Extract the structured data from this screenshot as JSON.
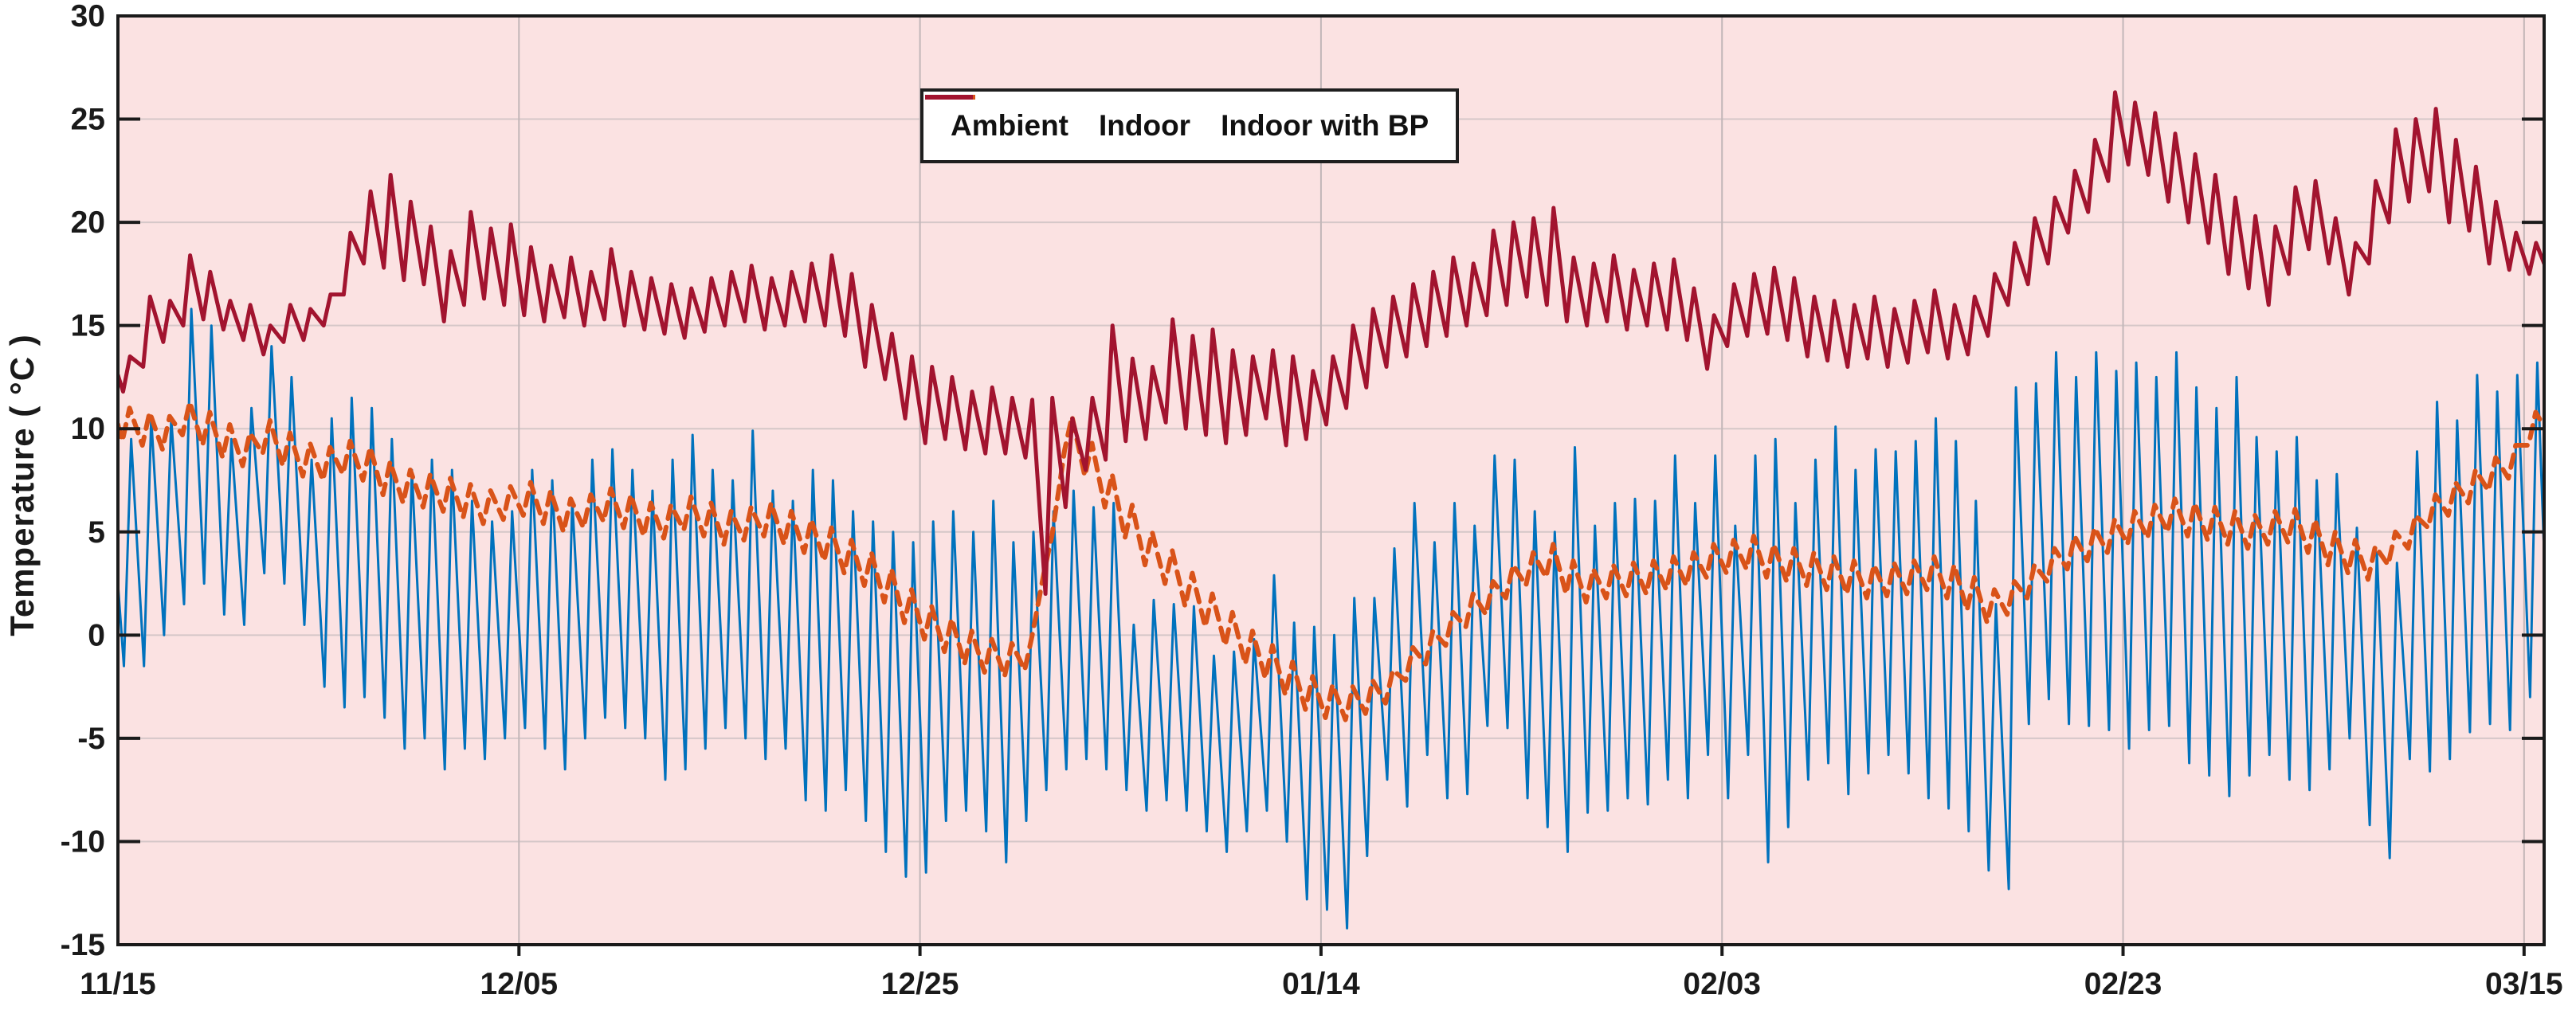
{
  "chart_data": {
    "type": "line",
    "title": "",
    "xlabel": "",
    "ylabel": "Temperature ( °C )",
    "ylim": [
      -15,
      30
    ],
    "yticks": [
      -15,
      -10,
      -5,
      0,
      5,
      10,
      15,
      20,
      25,
      30
    ],
    "xlim_days": [
      0,
      121
    ],
    "x_unit": "days since 11/15, 1 sample = 1 day (daily min / daily max of each curve)",
    "xticks_days": [
      0,
      20,
      40,
      60,
      80,
      100,
      120
    ],
    "xtick_labels": [
      "11/15",
      "12/05",
      "12/25",
      "01/14",
      "02/03",
      "02/23",
      "03/15"
    ],
    "grid": true,
    "legend_position": "top-center-inside",
    "plot_bg_color": "#fbe2e2",
    "h_grid_color": "#d5c7c8",
    "v_grid_color": "#c2b6b8",
    "axis_color": "#1a1a1a",
    "series": [
      {
        "name": "Ambient",
        "color": "#0072BD",
        "line_style": "solid",
        "line_width": 3,
        "start_value": 2.5,
        "end_value": 4.0,
        "daily_max": [
          9.5,
          10.5,
          10.5,
          15.8,
          15.0,
          9.5,
          11.0,
          14.0,
          12.5,
          8.5,
          10.5,
          11.5,
          11.0,
          9.5,
          8.0,
          8.5,
          8.0,
          6.5,
          5.5,
          6.0,
          8.0,
          7.5,
          6.5,
          8.5,
          9.0,
          8.0,
          7.0,
          8.5,
          9.7,
          8.0,
          7.5,
          9.9,
          7.0,
          6.5,
          8.0,
          7.5,
          6.0,
          5.5,
          5.0,
          4.5,
          5.5,
          6.0,
          5.0,
          6.5,
          4.5,
          5.0,
          6.0,
          7.0,
          6.2,
          6.4,
          0.5,
          1.7,
          1.5,
          1.4,
          -1.0,
          -0.8,
          -0.2,
          2.9,
          0.6,
          0.4,
          0.0,
          1.8,
          1.8,
          4.2,
          6.4,
          4.5,
          6.4,
          5.3,
          8.7,
          8.5,
          6.0,
          5.0,
          9.1,
          5.3,
          6.4,
          6.6,
          6.5,
          8.7,
          6.4,
          8.7,
          5.3,
          8.7,
          9.5,
          6.4,
          8.5,
          10.1,
          8.0,
          9.0,
          8.9,
          9.4,
          10.5,
          9.4,
          6.5,
          1.5,
          12.0,
          12.2,
          13.7,
          12.5,
          13.7,
          12.8,
          13.2,
          12.5,
          13.7,
          12.0,
          11.0,
          12.5,
          9.6,
          8.9,
          9.6,
          7.5,
          7.8,
          5.2,
          4.0,
          3.5,
          8.9,
          11.3,
          10.4,
          12.6,
          11.8,
          12.6,
          13.2
        ],
        "daily_min": [
          -1.5,
          -1.5,
          0.0,
          1.5,
          2.5,
          1.0,
          0.5,
          3.0,
          2.5,
          0.5,
          -2.5,
          -3.5,
          -3.0,
          -4.0,
          -5.5,
          -5.0,
          -6.5,
          -5.5,
          -6.0,
          -5.0,
          -4.5,
          -5.5,
          -6.5,
          -5.0,
          -4.0,
          -4.5,
          -5.0,
          -7.0,
          -6.5,
          -5.5,
          -4.5,
          -5.0,
          -6.0,
          -5.5,
          -8.0,
          -8.5,
          -7.5,
          -9.0,
          -10.5,
          -11.7,
          -11.5,
          -9.0,
          -8.5,
          -9.5,
          -11.0,
          -9.0,
          -7.5,
          -6.5,
          -6.0,
          -6.5,
          -7.5,
          -8.5,
          -8.0,
          -8.5,
          -9.5,
          -10.5,
          -9.5,
          -8.5,
          -10.0,
          -12.8,
          -13.3,
          -14.2,
          -10.7,
          -7.0,
          -8.3,
          -5.8,
          -7.9,
          -7.7,
          -4.4,
          -4.5,
          -7.9,
          -9.3,
          -10.5,
          -8.6,
          -8.5,
          -7.9,
          -8.2,
          -7.0,
          -7.9,
          -5.8,
          -7.9,
          -5.8,
          -11.0,
          -9.3,
          -7.0,
          -6.2,
          -7.7,
          -6.7,
          -5.8,
          -6.7,
          -7.9,
          -8.4,
          -9.5,
          -11.4,
          -12.3,
          -4.3,
          -3.1,
          -4.3,
          -4.4,
          -4.6,
          -5.5,
          -4.6,
          -4.4,
          -6.2,
          -6.8,
          -7.8,
          -6.8,
          -5.8,
          -7.0,
          -7.5,
          -6.5,
          -5.0,
          -9.2,
          -10.8,
          -6.0,
          -6.6,
          -6.0,
          -4.7,
          -4.3,
          -4.6,
          -3.0
        ]
      },
      {
        "name": "Indoor",
        "color": "#D95319",
        "line_style": "dashed",
        "line_width": 6,
        "start_value": 10.2,
        "end_value": 10.1,
        "daily_amplitude": 0.8,
        "daily_values": [
          10.2,
          10.0,
          9.8,
          10.5,
          10.0,
          9.4,
          9.0,
          9.6,
          9.0,
          8.5,
          8.3,
          8.6,
          8.3,
          7.6,
          7.2,
          7.0,
          6.8,
          6.5,
          6.2,
          6.4,
          6.6,
          6.2,
          5.8,
          6.0,
          6.3,
          6.0,
          5.6,
          5.5,
          5.9,
          5.6,
          5.2,
          5.4,
          5.6,
          5.2,
          4.8,
          4.4,
          3.8,
          3.2,
          2.4,
          1.4,
          0.6,
          0.0,
          -0.6,
          -1.0,
          -1.2,
          -0.9,
          4.0,
          9.8,
          8.5,
          7.0,
          5.5,
          4.2,
          3.3,
          2.2,
          1.2,
          0.3,
          -0.6,
          -1.3,
          -2.1,
          -2.8,
          -3.2,
          -3.3,
          -3.0,
          -2.5,
          -1.4,
          -0.6,
          0.3,
          1.2,
          1.8,
          2.6,
          3.2,
          3.6,
          2.8,
          2.4,
          2.6,
          2.7,
          2.8,
          3.0,
          3.2,
          3.6,
          3.8,
          4.0,
          3.6,
          3.4,
          3.2,
          3.0,
          2.8,
          2.6,
          2.7,
          2.8,
          3.0,
          2.6,
          2.0,
          1.4,
          1.8,
          2.6,
          3.4,
          4.0,
          4.4,
          4.8,
          5.2,
          5.5,
          5.8,
          5.6,
          5.4,
          5.2,
          5.0,
          5.2,
          5.3,
          4.8,
          4.2,
          3.8,
          3.5,
          4.2,
          5.0,
          6.0,
          6.6,
          7.2,
          7.8,
          8.4,
          10.0
        ]
      },
      {
        "name": "Indoor with BP",
        "color": "#A2142F",
        "line_style": "solid",
        "line_width": 5,
        "start_value": 12.6,
        "end_value": 18.0,
        "daily_max": [
          13.5,
          16.4,
          16.2,
          18.4,
          17.6,
          16.2,
          16.0,
          15.0,
          16.0,
          15.8,
          16.5,
          19.5,
          21.5,
          22.3,
          21.0,
          19.8,
          18.6,
          20.5,
          19.7,
          19.9,
          18.8,
          17.9,
          18.3,
          17.6,
          18.7,
          17.6,
          17.3,
          17.0,
          16.8,
          17.3,
          17.6,
          17.9,
          17.3,
          17.6,
          18.0,
          18.4,
          17.5,
          16.0,
          14.6,
          13.5,
          13.0,
          12.5,
          11.8,
          12.0,
          11.5,
          11.4,
          11.5,
          10.5,
          11.5,
          15.0,
          13.4,
          13.0,
          15.3,
          14.5,
          14.8,
          13.8,
          13.5,
          13.8,
          13.5,
          12.8,
          13.5,
          15.0,
          15.8,
          16.4,
          17.0,
          17.6,
          18.3,
          18.0,
          19.6,
          20.0,
          20.2,
          20.7,
          18.3,
          18.0,
          18.4,
          17.7,
          18.0,
          18.2,
          16.8,
          15.5,
          17.0,
          17.5,
          17.8,
          17.3,
          16.4,
          16.2,
          16.0,
          16.4,
          15.8,
          16.2,
          16.7,
          16.0,
          16.4,
          17.5,
          19.0,
          20.2,
          21.2,
          22.5,
          24.0,
          26.3,
          25.8,
          25.3,
          24.3,
          23.3,
          22.3,
          21.2,
          20.3,
          19.8,
          21.7,
          22.0,
          20.2,
          19.0,
          22.0,
          24.5,
          25.0,
          25.5,
          24.0,
          22.7,
          21.0,
          19.5,
          19.0
        ],
        "daily_min": [
          11.8,
          13.0,
          14.2,
          15.0,
          15.3,
          14.8,
          14.3,
          13.6,
          14.2,
          14.3,
          15.0,
          16.5,
          18.0,
          17.8,
          17.2,
          17.0,
          15.2,
          16.0,
          16.3,
          16.0,
          15.5,
          15.2,
          15.4,
          15.0,
          15.3,
          15.0,
          14.8,
          14.6,
          14.4,
          14.7,
          15.0,
          15.2,
          14.8,
          15.0,
          15.2,
          15.0,
          14.5,
          13.0,
          12.4,
          10.5,
          9.3,
          9.5,
          9.0,
          8.8,
          8.8,
          8.6,
          2.0,
          6.2,
          8.0,
          8.5,
          9.4,
          9.5,
          10.3,
          10.0,
          9.7,
          9.3,
          9.7,
          10.5,
          9.2,
          9.5,
          10.2,
          11.0,
          12.0,
          13.0,
          13.5,
          14.0,
          14.5,
          15.0,
          15.5,
          16.0,
          16.4,
          16.0,
          15.2,
          15.0,
          15.2,
          14.8,
          15.0,
          14.8,
          14.3,
          12.9,
          14.0,
          14.5,
          14.6,
          14.3,
          13.5,
          13.3,
          13.0,
          13.4,
          13.0,
          13.2,
          13.7,
          13.4,
          13.6,
          14.5,
          16.0,
          17.0,
          18.0,
          19.5,
          20.5,
          22.0,
          22.8,
          22.3,
          21.0,
          20.0,
          19.0,
          17.5,
          16.8,
          16.0,
          17.5,
          18.7,
          18.0,
          16.5,
          18.0,
          20.0,
          21.0,
          21.5,
          20.0,
          19.6,
          18.0,
          17.7,
          17.5
        ]
      }
    ]
  }
}
